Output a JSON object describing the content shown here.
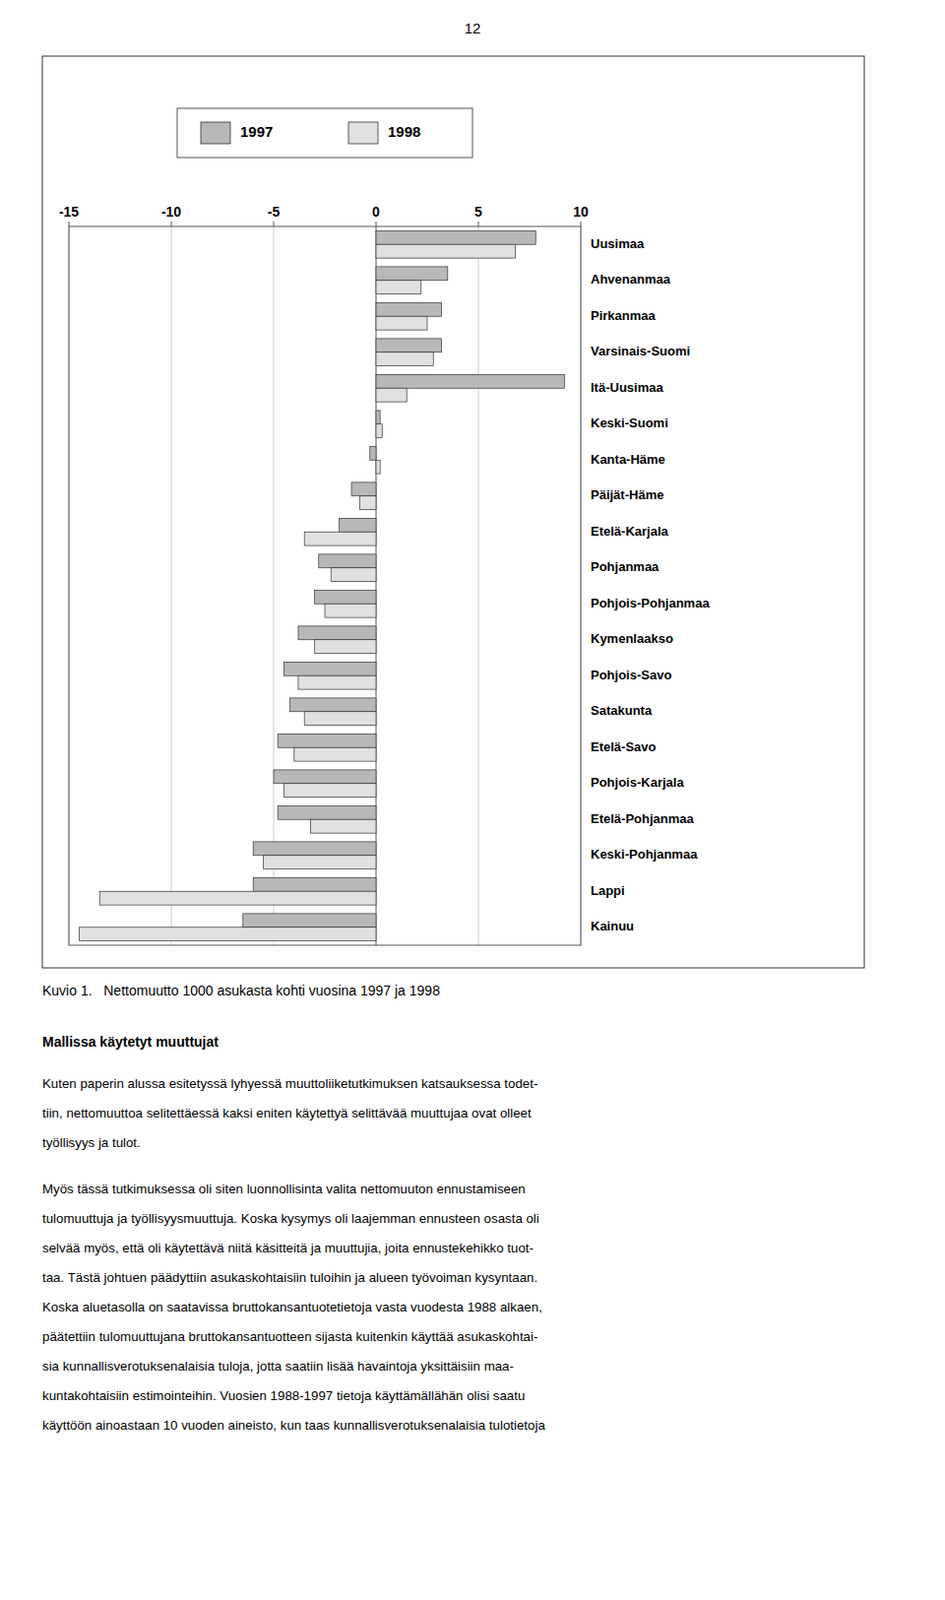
{
  "page_number": "12",
  "caption": "Kuvio 1.   Nettomuutto 1000 asukasta kohti vuosina 1997 ja 1998",
  "section_header": "Mallissa käytetyt muuttujat",
  "body_paragraphs": [
    [
      "Kuten paperin alussa esitetyssä lyhyessä muuttoliiketutkimuksen katsauksessa todet-",
      "tiin, nettomuuttoa selitettäessä kaksi eniten käytettyä selittävää muuttujaa ovat olleet",
      "työllisyys ja tulot."
    ],
    [
      "Myös tässä tutkimuksessa oli siten luonnollisinta valita nettomuuton ennustamiseen",
      "tulomuuttuja ja työllisyysmuuttuja. Koska kysymys oli laajemman ennusteen osasta oli",
      "selvää myös, että oli käytettävä niitä käsitteitä ja muuttujia, joita ennustekehikko tuot-",
      "taa. Tästä johtuen päädyttiin asukaskohtaisiin tuloihin ja alueen työvoiman kysyntaan.",
      "Koska aluetasolla on saatavissa bruttokansantuotetietoja vasta vuodesta 1988 alkaen,",
      "päätettiin tulomuuttujana bruttokansantuotteen sijasta kuitenkin käyttää asukaskohtai-",
      "sia kunnallisverotuksenalaisia tuloja, jotta saatiin lisää havaintoja yksittäisiin maa-",
      "kuntakohtaisiin estimointeihin. Vuosien 1988-1997 tietoja käyttämällähän olisi saatu",
      "käyttöön ainoastaan 10 vuoden aineisto, kun taas kunnallisverotuksenalaisia tulotietoja"
    ]
  ],
  "chart_data": {
    "type": "bar",
    "orientation": "horizontal",
    "categories": [
      "Uusimaa",
      "Ahvenanmaa",
      "Pirkanmaa",
      "Varsinais-Suomi",
      "Itä-Uusimaa",
      "Keski-Suomi",
      "Kanta-Häme",
      "Päijät-Häme",
      "Etelä-Karjala",
      "Pohjanmaa",
      "Pohjois-Pohjanmaa",
      "Kymenlaakso",
      "Pohjois-Savo",
      "Satakunta",
      "Etelä-Savo",
      "Pohjois-Karjala",
      "Etelä-Pohjanmaa",
      "Keski-Pohjanmaa",
      "Lappi",
      "Kainuu"
    ],
    "series": [
      {
        "name": "1997",
        "color": "#b8b8b8",
        "values": [
          7.8,
          3.5,
          3.2,
          3.2,
          9.2,
          0.2,
          -0.3,
          -1.2,
          -1.8,
          -2.8,
          -3.0,
          -3.8,
          -4.5,
          -4.2,
          -4.8,
          -5.0,
          -4.8,
          -6.0,
          -6.0,
          -6.5
        ]
      },
      {
        "name": "1998",
        "color": "#e0e0e0",
        "values": [
          6.8,
          2.2,
          2.5,
          2.8,
          1.5,
          0.3,
          0.2,
          -0.8,
          -3.5,
          -2.2,
          -2.5,
          -3.0,
          -3.8,
          -3.5,
          -4.0,
          -4.5,
          -3.2,
          -5.5,
          -13.5,
          -14.5
        ]
      }
    ],
    "xlim": [
      -15,
      10
    ],
    "xticks": [
      -15,
      -10,
      -5,
      0,
      5,
      10
    ],
    "grid": true,
    "legend": "top"
  }
}
